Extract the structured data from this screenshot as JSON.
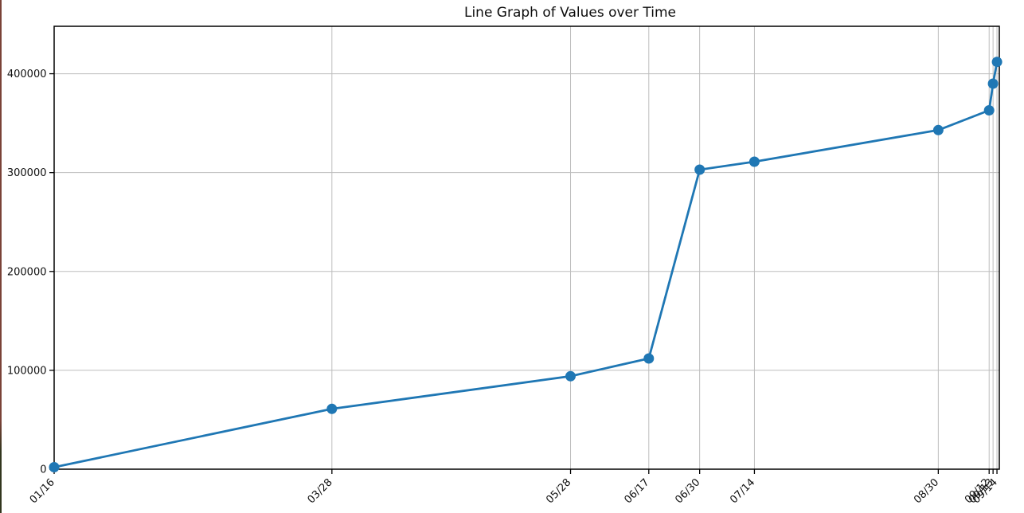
{
  "chart_data": {
    "type": "line",
    "title": "Line Graph of Values over Time",
    "categories": [
      "01/16",
      "03/28",
      "05/28",
      "06/17",
      "06/30",
      "07/14",
      "08/30",
      "09/12",
      "09/13",
      "09/14"
    ],
    "values": [
      2000,
      61000,
      94000,
      112000,
      303000,
      311000,
      343000,
      363000,
      390000,
      412000
    ],
    "y_ticks": [
      0,
      100000,
      200000,
      300000,
      400000
    ],
    "y_tick_labels": [
      "0",
      "100000",
      "200000",
      "300000",
      "400000"
    ],
    "ylim": [
      0,
      448000
    ],
    "xlim_days": [
      16,
      257.6
    ],
    "x_scale": "date-proportional",
    "xtick_rotation": 45,
    "grid": true,
    "grid_color": "#bdbdbd",
    "line_color": "#1f77b4",
    "marker": "circle",
    "xlabel": "",
    "ylabel": "",
    "legend": "none"
  },
  "decorations": {
    "left_border_top_color": "#7a4238",
    "left_border_bottom_color": "#32361e"
  }
}
